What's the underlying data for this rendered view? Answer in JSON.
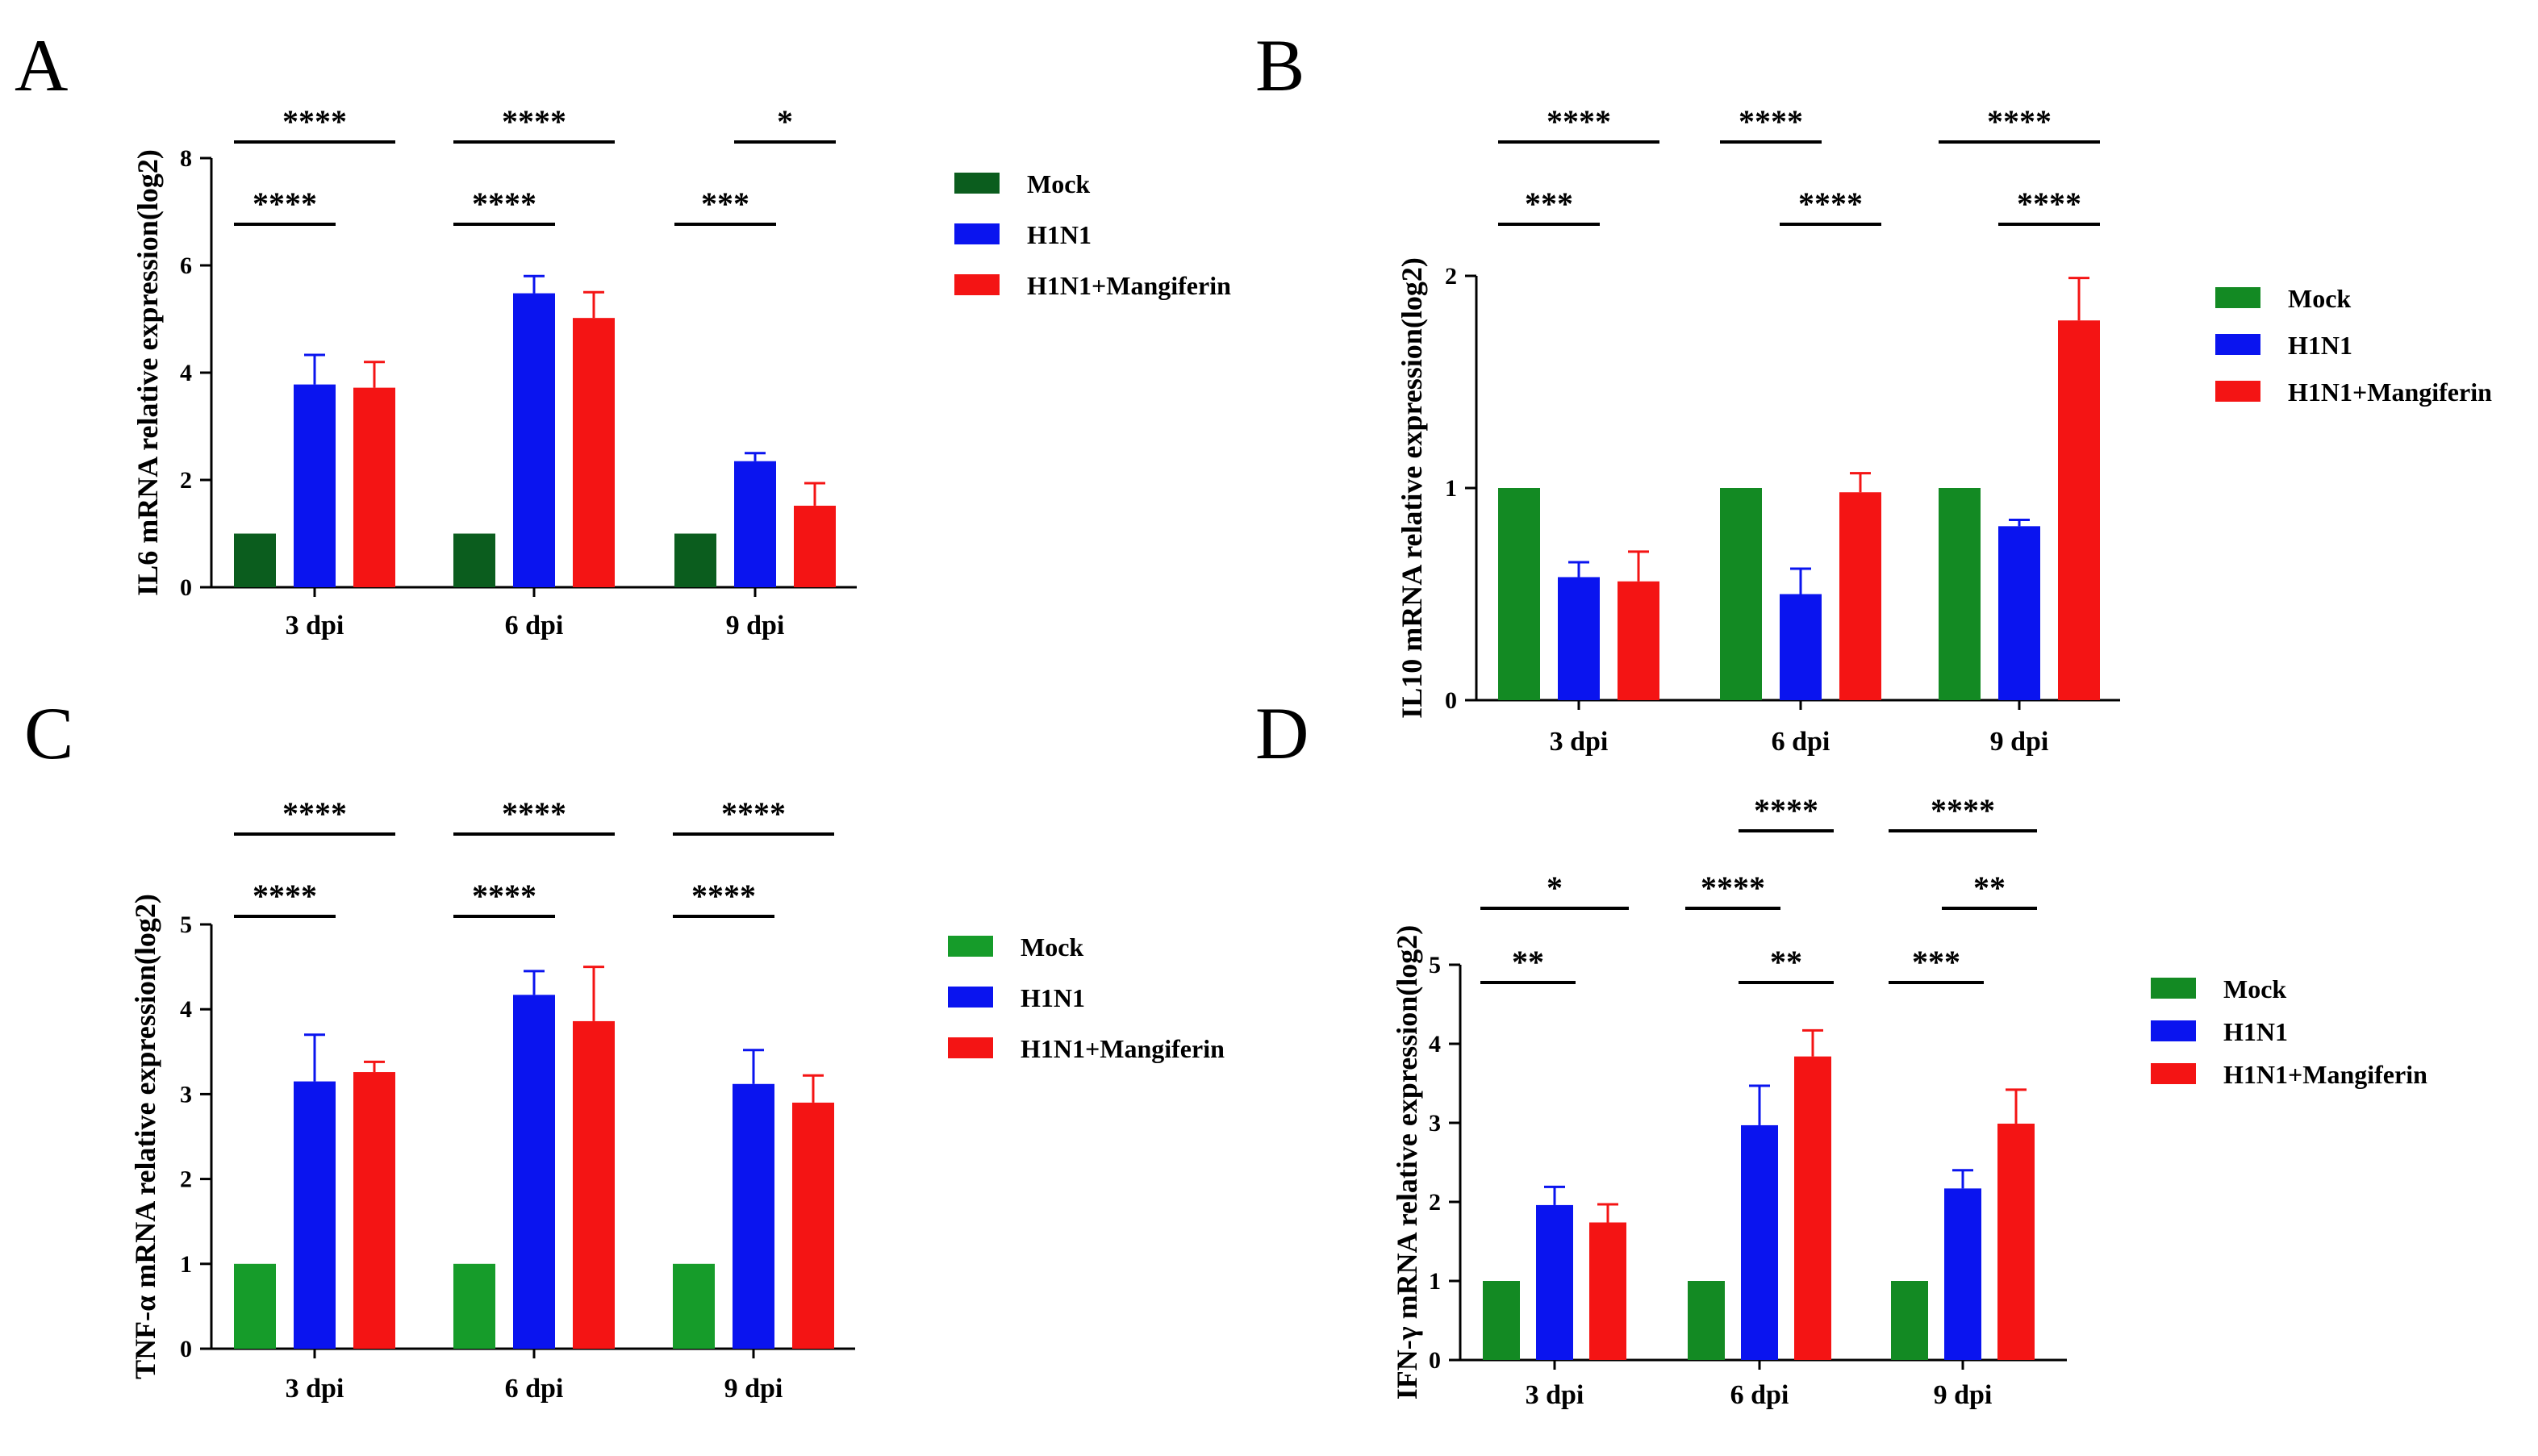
{
  "figure": {
    "series_names": [
      "Mock",
      "H1N1",
      "H1N1+Mangiferin"
    ]
  },
  "chart_data": [
    {
      "panel": "A",
      "type": "bar",
      "ylabel": "IL6 mRNA relative expression(log2)",
      "categories": [
        "3 dpi",
        "6 dpi",
        "9 dpi"
      ],
      "ylim": [
        0,
        8
      ],
      "yticks": [
        0,
        2,
        4,
        6,
        8
      ],
      "series": [
        {
          "name": "Mock",
          "color": "#0b5d1e",
          "values": [
            1,
            1,
            1
          ],
          "errors": [
            0,
            0,
            0
          ]
        },
        {
          "name": "H1N1",
          "color": "#0a14ef",
          "values": [
            3.78,
            5.48,
            2.35
          ],
          "errors": [
            0.55,
            0.32,
            0.15
          ]
        },
        {
          "name": "H1N1+Mangiferin",
          "color": "#f41414",
          "values": [
            3.72,
            5.02,
            1.52
          ],
          "errors": [
            0.48,
            0.48,
            0.42
          ]
        }
      ],
      "significance": [
        {
          "from": 0,
          "to": 2,
          "cat": 0,
          "level": "top",
          "label": "****"
        },
        {
          "from": 0,
          "to": 1,
          "cat": 0,
          "level": "low",
          "label": "****"
        },
        {
          "from": 0,
          "to": 2,
          "cat": 1,
          "level": "top",
          "label": "****"
        },
        {
          "from": 0,
          "to": 1,
          "cat": 1,
          "level": "low",
          "label": "****"
        },
        {
          "from": 1,
          "to": 2,
          "cat": 2,
          "level": "top",
          "label": "*"
        },
        {
          "from": 0,
          "to": 1,
          "cat": 2,
          "level": "low",
          "label": "***"
        }
      ]
    },
    {
      "panel": "B",
      "type": "bar",
      "ylabel": "IL10 mRNA relative expression(log2)",
      "categories": [
        "3 dpi",
        "6 dpi",
        "9 dpi"
      ],
      "ylim": [
        0,
        2
      ],
      "yticks": [
        0,
        1,
        2
      ],
      "series": [
        {
          "name": "Mock",
          "color": "#138a23",
          "values": [
            1,
            1,
            1
          ],
          "errors": [
            0,
            0,
            0
          ]
        },
        {
          "name": "H1N1",
          "color": "#0a14ef",
          "values": [
            0.58,
            0.5,
            0.82
          ],
          "errors": [
            0.07,
            0.12,
            0.03
          ]
        },
        {
          "name": "H1N1+Mangiferin",
          "color": "#f41414",
          "values": [
            0.56,
            0.98,
            1.79
          ],
          "errors": [
            0.14,
            0.09,
            0.2
          ]
        }
      ],
      "significance": [
        {
          "from": 0,
          "to": 2,
          "cat": 0,
          "level": "top",
          "label": "****"
        },
        {
          "from": 0,
          "to": 1,
          "cat": 0,
          "level": "low",
          "label": "***"
        },
        {
          "from": 0,
          "to": 1,
          "cat": 1,
          "level": "top",
          "label": "****"
        },
        {
          "from": 1,
          "to": 2,
          "cat": 1,
          "level": "low",
          "label": "****"
        },
        {
          "from": 0,
          "to": 2,
          "cat": 2,
          "level": "top",
          "label": "****"
        },
        {
          "from": 1,
          "to": 2,
          "cat": 2,
          "level": "low",
          "label": "****"
        }
      ]
    },
    {
      "panel": "C",
      "type": "bar",
      "ylabel": "TNF-α mRNA relative expression(log2)",
      "categories": [
        "3 dpi",
        "6 dpi",
        "9 dpi"
      ],
      "ylim": [
        0,
        5
      ],
      "yticks": [
        0,
        1,
        2,
        3,
        4,
        5
      ],
      "series": [
        {
          "name": "Mock",
          "color": "#169c2a",
          "values": [
            1,
            1,
            1
          ],
          "errors": [
            0,
            0,
            0
          ]
        },
        {
          "name": "H1N1",
          "color": "#0a14ef",
          "values": [
            3.15,
            4.17,
            3.12
          ],
          "errors": [
            0.55,
            0.28,
            0.4
          ]
        },
        {
          "name": "H1N1+Mangiferin",
          "color": "#f41414",
          "values": [
            3.26,
            3.86,
            2.9
          ],
          "errors": [
            0.12,
            0.64,
            0.32
          ]
        }
      ],
      "significance": [
        {
          "from": 0,
          "to": 2,
          "cat": 0,
          "level": "top",
          "label": "****"
        },
        {
          "from": 0,
          "to": 1,
          "cat": 0,
          "level": "low",
          "label": "****"
        },
        {
          "from": 0,
          "to": 2,
          "cat": 1,
          "level": "top",
          "label": "****"
        },
        {
          "from": 0,
          "to": 1,
          "cat": 1,
          "level": "low",
          "label": "****"
        },
        {
          "from": 0,
          "to": 2,
          "cat": 2,
          "level": "top",
          "label": "****"
        },
        {
          "from": 0,
          "to": 1,
          "cat": 2,
          "level": "low",
          "label": "****"
        }
      ]
    },
    {
      "panel": "D",
      "type": "bar",
      "ylabel": "IFN-γ mRNA relative expression(log2)",
      "categories": [
        "3 dpi",
        "6 dpi",
        "9 dpi"
      ],
      "ylim": [
        0,
        5
      ],
      "yticks": [
        0,
        1,
        2,
        3,
        4,
        5
      ],
      "series": [
        {
          "name": "Mock",
          "color": "#138a23",
          "values": [
            1,
            1,
            1
          ],
          "errors": [
            0,
            0,
            0
          ]
        },
        {
          "name": "H1N1",
          "color": "#0a14ef",
          "values": [
            1.96,
            2.97,
            2.17
          ],
          "errors": [
            0.23,
            0.5,
            0.23
          ]
        },
        {
          "name": "H1N1+Mangiferin",
          "color": "#f41414",
          "values": [
            1.74,
            3.84,
            2.99
          ],
          "errors": [
            0.23,
            0.33,
            0.43
          ]
        }
      ],
      "significance": [
        {
          "from": 0,
          "to": 2,
          "cat": 0,
          "level": "top",
          "label": "*"
        },
        {
          "from": 0,
          "to": 1,
          "cat": 0,
          "level": "low",
          "label": "**"
        },
        {
          "from": 1,
          "to": 2,
          "cat": 1,
          "level": "top2",
          "label": "****"
        },
        {
          "from": 0,
          "to": 1,
          "cat": 1,
          "level": "top",
          "label": "****"
        },
        {
          "from": 1,
          "to": 2,
          "cat": 1,
          "level": "low",
          "label": "**"
        },
        {
          "from": 0,
          "to": 2,
          "cat": 2,
          "level": "top2",
          "label": "****"
        },
        {
          "from": 1,
          "to": 2,
          "cat": 2,
          "level": "top",
          "label": "**"
        },
        {
          "from": 0,
          "to": 1,
          "cat": 2,
          "level": "low",
          "label": "***"
        }
      ]
    }
  ]
}
